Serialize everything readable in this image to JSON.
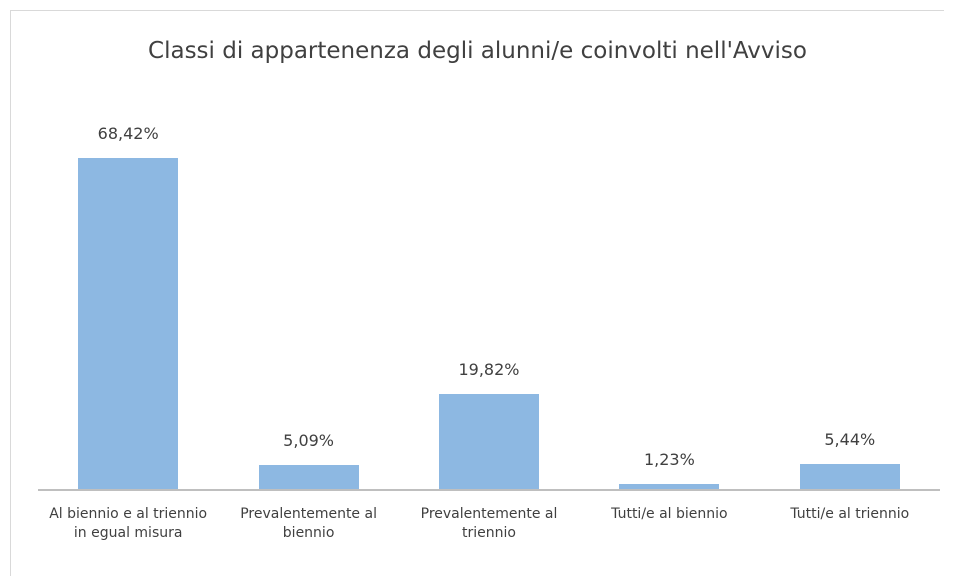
{
  "chart_data": {
    "type": "bar",
    "title": "Classi di appartenenza degli alunni/e coinvolti nell'Avviso",
    "categories": [
      "Al biennio e al triennio in egual misura",
      "Prevalentemente al biennio",
      "Prevalentemente al triennio",
      "Tutti/e al biennio",
      "Tutti/e al triennio"
    ],
    "values": [
      68.42,
      5.09,
      19.82,
      1.23,
      5.44
    ],
    "value_labels": [
      "68,42%",
      "5,09%",
      "19,82%",
      "1,23%",
      "5,44%"
    ],
    "color": "#8db8e2",
    "ylim": [
      0,
      80
    ]
  }
}
